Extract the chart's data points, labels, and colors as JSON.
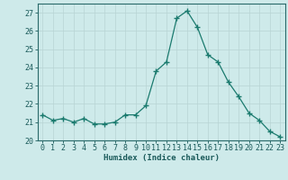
{
  "x": [
    0,
    1,
    2,
    3,
    4,
    5,
    6,
    7,
    8,
    9,
    10,
    11,
    12,
    13,
    14,
    15,
    16,
    17,
    18,
    19,
    20,
    21,
    22,
    23
  ],
  "y": [
    21.4,
    21.1,
    21.2,
    21.0,
    21.2,
    20.9,
    20.9,
    21.0,
    21.4,
    21.4,
    21.9,
    23.8,
    24.3,
    26.7,
    27.1,
    26.2,
    24.7,
    24.3,
    23.2,
    22.4,
    21.5,
    21.1,
    20.5,
    20.2
  ],
  "line_color": "#1a7a6e",
  "marker": "+",
  "marker_size": 4,
  "bg_color": "#ceeaea",
  "grid_color": "#b8d4d4",
  "xlabel": "Humidex (Indice chaleur)",
  "ylim": [
    20,
    27.5
  ],
  "yticks": [
    20,
    21,
    22,
    23,
    24,
    25,
    26,
    27
  ],
  "xlim": [
    -0.5,
    23.5
  ],
  "axis_color": "#2a6a6a",
  "font_color": "#1a5a5a",
  "label_fontsize": 6.5,
  "tick_fontsize": 6.0
}
